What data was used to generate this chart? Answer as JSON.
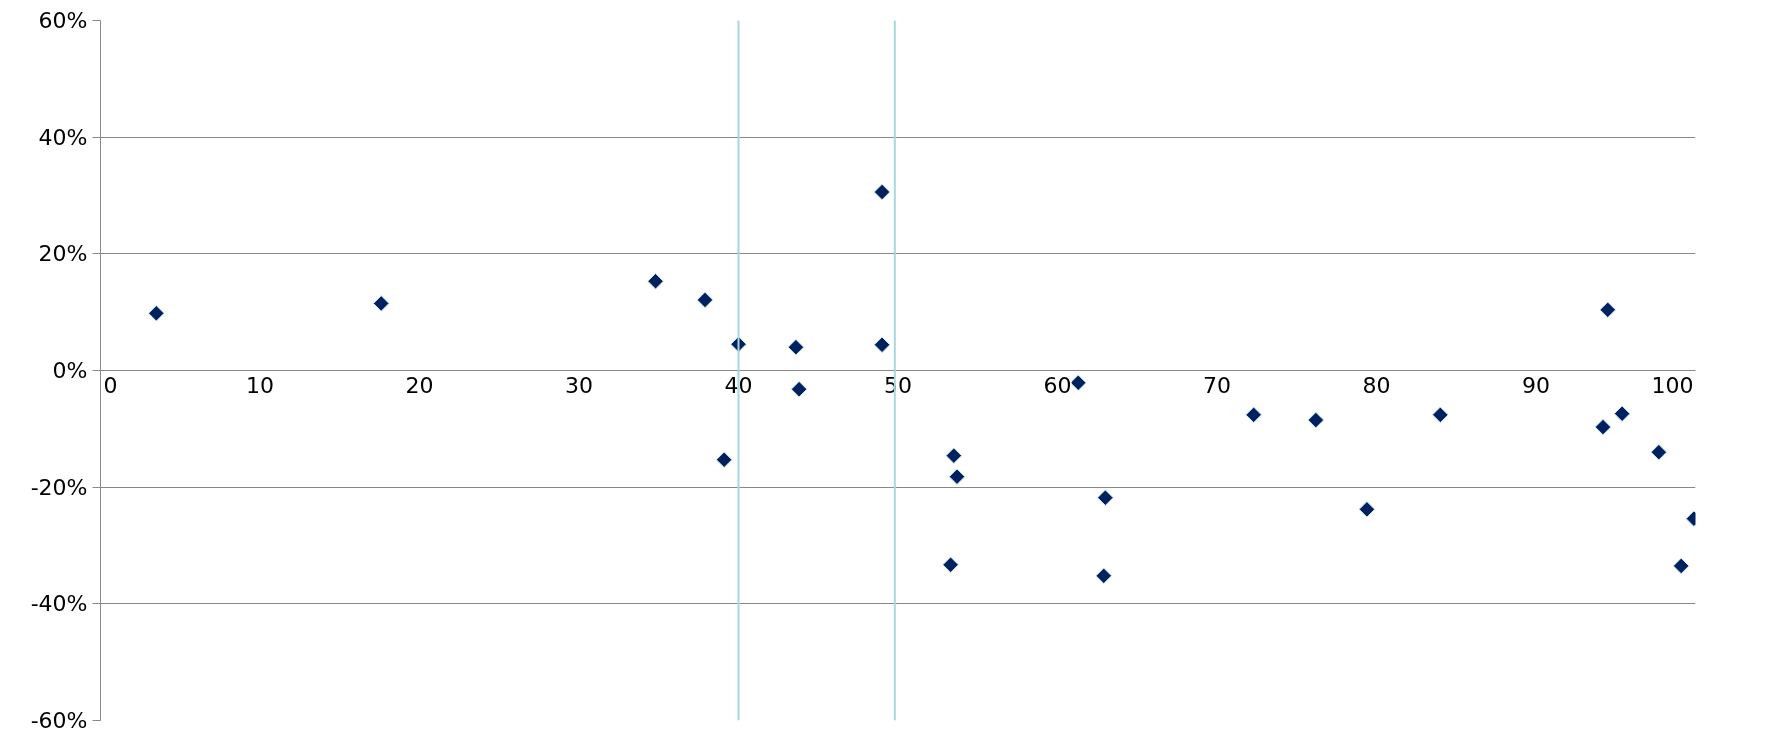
{
  "chart_data": {
    "type": "scatter",
    "marker": "diamond",
    "grid": "y",
    "xlim": [
      0,
      100
    ],
    "xticks": [
      0,
      10,
      20,
      30,
      40,
      50,
      60,
      70,
      80,
      90,
      100
    ],
    "ylim": [
      -60,
      60
    ],
    "yticks": [
      {
        "value": -60,
        "label": "-60%"
      },
      {
        "value": -40,
        "label": "-40%"
      },
      {
        "value": -20,
        "label": "-20%"
      },
      {
        "value": 0,
        "label": "0%"
      },
      {
        "value": 20,
        "label": "20%"
      },
      {
        "value": 40,
        "label": "40%"
      },
      {
        "value": 60,
        "label": "60%"
      }
    ],
    "ref_lines": [
      {
        "axis": "x",
        "value": 40,
        "color": "#a8d8dc"
      },
      {
        "axis": "x",
        "value": 49.8,
        "color": "#a8d8dc"
      }
    ],
    "series": [
      {
        "color": "#002060",
        "x": [
          3.5,
          17.6,
          34.8,
          37.9,
          40.0,
          39.1,
          43.6,
          43.8,
          49.0,
          49.0,
          53.5,
          53.7,
          53.3,
          61.3,
          63.0,
          62.9,
          72.3,
          76.2,
          79.4,
          84.0,
          94.5,
          94.2,
          95.4,
          97.7,
          99.1,
          99.9
        ],
        "values": [
          9.8,
          11.5,
          15.3,
          12.1,
          4.5,
          -15.3,
          4.0,
          -3.2,
          30.6,
          4.4,
          -14.6,
          -18.2,
          -33.3,
          -2.1,
          -21.8,
          -35.2,
          -7.6,
          -8.5,
          -23.8,
          -7.6,
          10.4,
          -9.7,
          -7.4,
          -14.0,
          -33.5,
          -25.4
        ]
      }
    ]
  }
}
